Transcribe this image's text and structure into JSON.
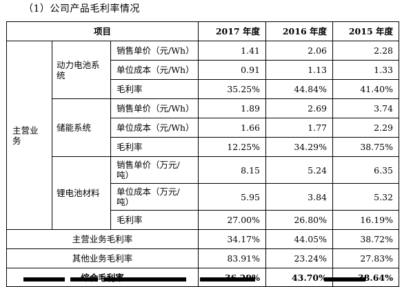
{
  "heading": "（1）公司产品毛利率情况",
  "table": {
    "header": {
      "item": "项目",
      "y2017": "2017 年度",
      "y2016": "2016 年度",
      "y2015": "2015 年度"
    },
    "main_business": "主营业务",
    "segments": [
      {
        "name": "动力电池系统",
        "rows": [
          {
            "label": "销售单价（元/Wh）",
            "y2017": "1.41",
            "y2016": "2.06",
            "y2015": "2.28"
          },
          {
            "label": "单位成本（元/Wh）",
            "y2017": "0.91",
            "y2016": "1.13",
            "y2015": "1.33"
          },
          {
            "label": "毛利率",
            "y2017": "35.25%",
            "y2016": "44.84%",
            "y2015": "41.40%"
          }
        ]
      },
      {
        "name": "储能系统",
        "rows": [
          {
            "label": "销售单价（元/Wh）",
            "y2017": "1.89",
            "y2016": "2.69",
            "y2015": "3.74"
          },
          {
            "label": "单位成本（元/Wh）",
            "y2017": "1.66",
            "y2016": "1.77",
            "y2015": "2.29"
          },
          {
            "label": "毛利率",
            "y2017": "12.25%",
            "y2016": "34.29%",
            "y2015": "38.75%"
          }
        ]
      },
      {
        "name": "锂电池材料",
        "rows": [
          {
            "label": "销售单价（万元/吨）",
            "y2017": "8.15",
            "y2016": "5.24",
            "y2015": "6.35"
          },
          {
            "label": "单位成本（万元/吨）",
            "y2017": "5.95",
            "y2016": "3.84",
            "y2015": "5.32"
          },
          {
            "label": "毛利率",
            "y2017": "27.00%",
            "y2016": "26.80%",
            "y2015": "16.19%"
          }
        ]
      }
    ],
    "summary": [
      {
        "label": "主营业务毛利率",
        "y2017": "34.17%",
        "y2016": "44.05%",
        "y2015": "38.72%"
      },
      {
        "label": "其他业务毛利率",
        "y2017": "83.91%",
        "y2016": "23.24%",
        "y2015": "27.83%"
      },
      {
        "label": "综合毛利率",
        "y2017": "36.29%",
        "y2016": "43.70%",
        "y2015": "38.64%"
      }
    ]
  }
}
